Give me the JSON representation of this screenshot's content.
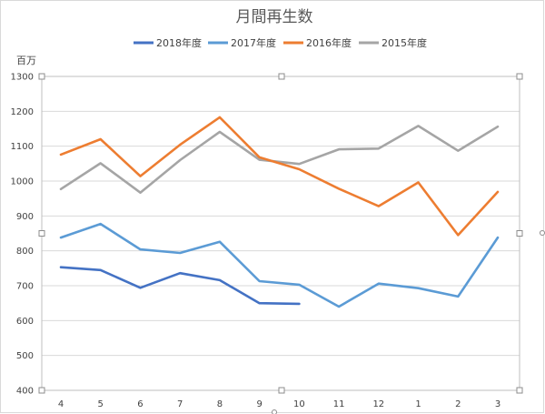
{
  "chart_data": {
    "type": "line",
    "title": "月間再生数",
    "ylabel": "百万",
    "xlabel": "",
    "categories": [
      "4",
      "5",
      "6",
      "7",
      "8",
      "9",
      "10",
      "11",
      "12",
      "1",
      "2",
      "3"
    ],
    "ylim": [
      400,
      1300
    ],
    "yticks": [
      400,
      500,
      600,
      700,
      800,
      900,
      1000,
      1100,
      1200,
      1300
    ],
    "grid": true,
    "legend_position": "top",
    "series": [
      {
        "name": "2018年度",
        "color": "#4472c4",
        "values": [
          753,
          745,
          694,
          736,
          716,
          650,
          648,
          null,
          null,
          null,
          null,
          null
        ]
      },
      {
        "name": "2017年度",
        "color": "#5b9bd5",
        "values": [
          838,
          877,
          804,
          794,
          826,
          713,
          703,
          640,
          706,
          693,
          669,
          838
        ]
      },
      {
        "name": "2016年度",
        "color": "#ed7d31",
        "values": [
          1076,
          1120,
          1014,
          1104,
          1183,
          1068,
          1034,
          978,
          928,
          996,
          845,
          969
        ]
      },
      {
        "name": "2015年度",
        "color": "#a5a5a5",
        "values": [
          977,
          1051,
          967,
          1060,
          1141,
          1061,
          1049,
          1091,
          1093,
          1158,
          1087,
          1156
        ]
      }
    ]
  }
}
